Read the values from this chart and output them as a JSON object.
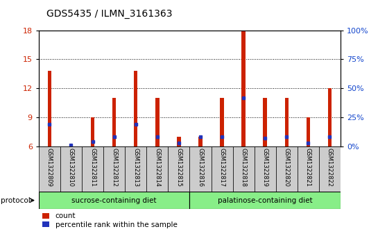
{
  "title": "GDS5435 / ILMN_3161363",
  "samples": [
    "GSM1322809",
    "GSM1322810",
    "GSM1322811",
    "GSM1322812",
    "GSM1322813",
    "GSM1322814",
    "GSM1322815",
    "GSM1322816",
    "GSM1322817",
    "GSM1322818",
    "GSM1322819",
    "GSM1322820",
    "GSM1322821",
    "GSM1322822"
  ],
  "red_values": [
    13.8,
    6.1,
    9.0,
    11.0,
    13.8,
    11.0,
    7.0,
    7.0,
    11.0,
    18.0,
    11.0,
    11.0,
    9.0,
    12.0
  ],
  "blue_values": [
    8.3,
    6.1,
    6.5,
    7.0,
    8.3,
    7.0,
    6.3,
    7.0,
    7.0,
    11.0,
    6.8,
    7.0,
    6.3,
    7.0
  ],
  "ylim_left": [
    6,
    18
  ],
  "ylim_right": [
    0,
    100
  ],
  "yticks_left": [
    6,
    9,
    12,
    15,
    18
  ],
  "yticks_right": [
    0,
    25,
    50,
    75,
    100
  ],
  "ytick_labels_right": [
    "0%",
    "25%",
    "50%",
    "75%",
    "100%"
  ],
  "group1_label": "sucrose-containing diet",
  "group2_label": "palatinose-containing diet",
  "group1_count": 7,
  "group2_count": 7,
  "bar_color_red": "#cc2200",
  "bar_color_blue": "#2233bb",
  "bar_width": 0.18,
  "tick_bg_color": "#cccccc",
  "protocol_label": "protocol",
  "legend_count": "count",
  "legend_percentile": "percentile rank within the sample",
  "group_bg_color": "#88ee88",
  "ylabel_left_color": "#cc2200",
  "ylabel_right_color": "#1144cc",
  "plot_bg": "#ffffff",
  "fig_bg": "#ffffff"
}
